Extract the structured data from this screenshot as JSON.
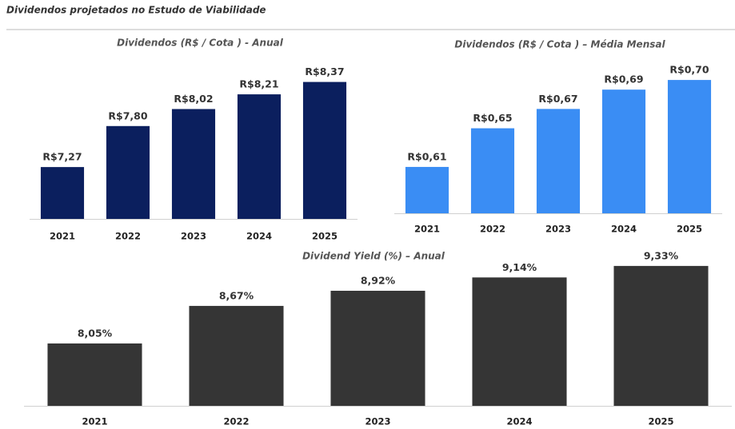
{
  "title": "Dividendos projetados no Estudo de Viabilidade",
  "chart_data": [
    {
      "type": "bar",
      "title": "Dividendos (R$ / Cota ) - Anual",
      "categories": [
        "2021",
        "2022",
        "2023",
        "2024",
        "2025"
      ],
      "values": [
        7.27,
        7.8,
        8.02,
        8.21,
        8.37
      ],
      "value_labels": [
        "R$7,27",
        "R$7,80",
        "R$8,02",
        "R$8,21",
        "R$8,37"
      ],
      "color": "#0b1f5e",
      "ylim": [
        6.6,
        8.5
      ]
    },
    {
      "type": "bar",
      "title": "Dividendos (R$ / Cota ) – Média Mensal",
      "categories": [
        "2021",
        "2022",
        "2023",
        "2024",
        "2025"
      ],
      "values": [
        0.61,
        0.65,
        0.67,
        0.69,
        0.7
      ],
      "value_labels": [
        "R$0,61",
        "R$0,65",
        "R$0,67",
        "R$0,69",
        "R$0,70"
      ],
      "color": "#3a8df4",
      "ylim": [
        0.562,
        0.71
      ]
    },
    {
      "type": "bar",
      "title": "Dividend Yield (%) – Anual",
      "categories": [
        "2021",
        "2022",
        "2023",
        "2024",
        "2025"
      ],
      "values": [
        8.05,
        8.67,
        8.92,
        9.14,
        9.33
      ],
      "value_labels": [
        "8,05%",
        "8,67%",
        "8,92%",
        "9,14%",
        "9,33%"
      ],
      "color": "#353535",
      "ylim": [
        7.02,
        9.5
      ]
    }
  ]
}
